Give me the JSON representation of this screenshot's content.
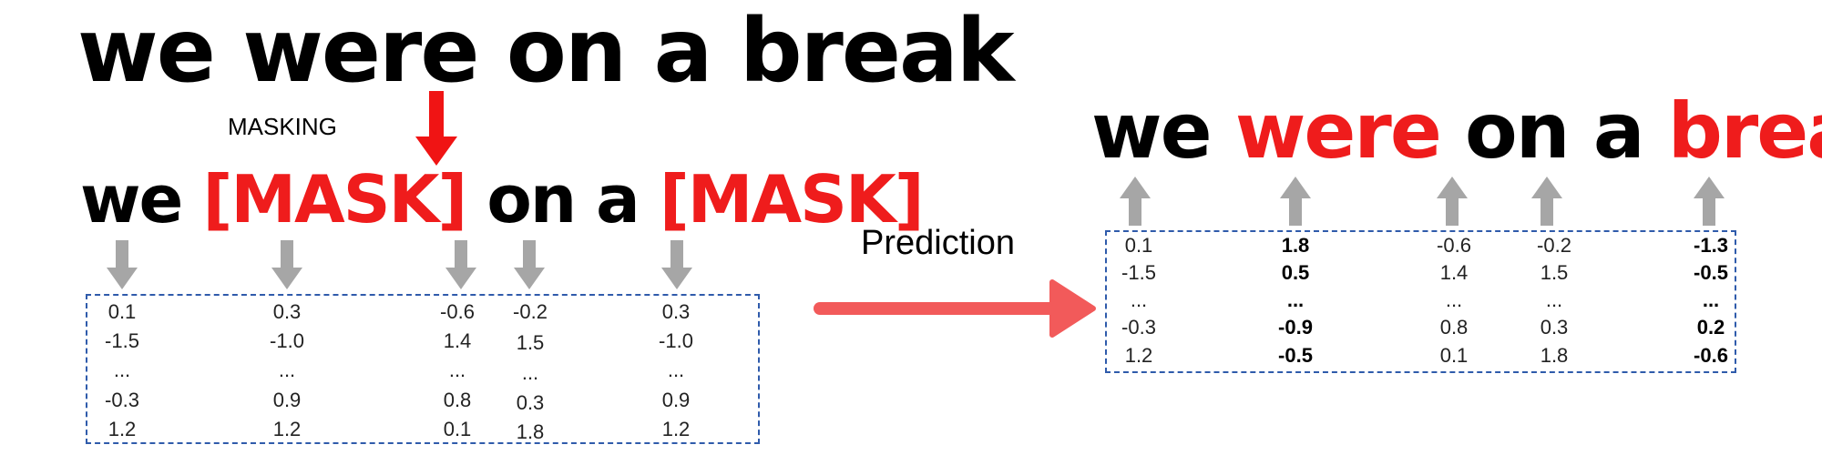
{
  "sentence_original": "we were on a break",
  "masking_label": "MASKING",
  "masked_sentence": {
    "w1": "we",
    "w2": "[MASK]",
    "w3": "on",
    "w4": "a",
    "w5": "[MASK]"
  },
  "prediction_label": "Prediction",
  "predicted_sentence": {
    "w1": "we",
    "w2": "were",
    "w3": "on",
    "w4": "a",
    "w5": "break"
  },
  "input_vectors": [
    [
      "0.1",
      "-1.5",
      "...",
      "-0.3",
      "1.2"
    ],
    [
      "0.3",
      "-1.0",
      "...",
      "0.9",
      "1.2"
    ],
    [
      "-0.6",
      "1.4",
      "...",
      "0.8",
      "0.1"
    ],
    [
      "-0.2",
      "1.5",
      "...",
      "0.3",
      "1.8"
    ],
    [
      "0.3",
      "-1.0",
      "...",
      "0.9",
      "1.2"
    ]
  ],
  "output_vectors": [
    [
      "0.1",
      "-1.5",
      "...",
      "-0.3",
      "1.2"
    ],
    [
      "1.8",
      "0.5",
      "...",
      "-0.9",
      "-0.5"
    ],
    [
      "-0.6",
      "1.4",
      "...",
      "0.8",
      "0.1"
    ],
    [
      "-0.2",
      "1.5",
      "...",
      "0.3",
      "1.8"
    ],
    [
      "-1.3",
      "-0.5",
      "...",
      "0.2",
      "-0.6"
    ]
  ],
  "colors": {
    "highlight": "#ef1c1c",
    "arrow_gray": "#a6a6a6",
    "mask_arrow": "#f01414",
    "prediction_arrow": "#f25a5a",
    "box_border": "#2f5bab"
  }
}
